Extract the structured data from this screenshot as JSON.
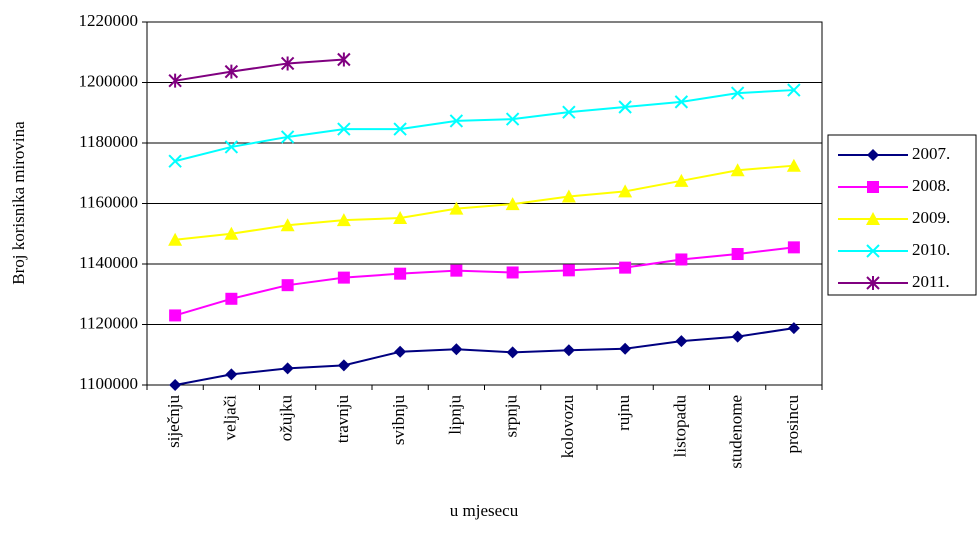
{
  "chart_data": {
    "type": "line",
    "y_label": "Broj korisnika mirovina",
    "x_label": "u mjesecu",
    "categories": [
      "siječnju",
      "veljači",
      "ožujku",
      "travnju",
      "svibnju",
      "lipnju",
      "srpnju",
      "kolovozu",
      "rujnu",
      "listopadu",
      "studenome",
      "prosincu"
    ],
    "ylim": [
      1100000,
      1220000
    ],
    "yticks": [
      1100000,
      1120000,
      1140000,
      1160000,
      1180000,
      1200000,
      1220000
    ],
    "grid": true,
    "legend": "right",
    "series": [
      {
        "name": "2007.",
        "color": "#000080",
        "marker": "diamond",
        "values": [
          1100000,
          1103500,
          1105500,
          1106500,
          1111000,
          1111800,
          1110800,
          1111500,
          1112000,
          1114500,
          1116000,
          1118800
        ]
      },
      {
        "name": "2008.",
        "color": "#ff00ff",
        "marker": "square",
        "values": [
          1123000,
          1128500,
          1133000,
          1135500,
          1136800,
          1137800,
          1137200,
          1137900,
          1138800,
          1141500,
          1143300,
          1145500
        ]
      },
      {
        "name": "2009.",
        "color": "#ffff00",
        "marker": "triangle",
        "values": [
          1148000,
          1150000,
          1152800,
          1154500,
          1155200,
          1158300,
          1159800,
          1162300,
          1164000,
          1167500,
          1171000,
          1172500
        ]
      },
      {
        "name": "2010.",
        "color": "#00ffff",
        "marker": "x",
        "values": [
          1174000,
          1178700,
          1182000,
          1184600,
          1184600,
          1187300,
          1187900,
          1190200,
          1191900,
          1193600,
          1196500,
          1197500
        ]
      },
      {
        "name": "2011.",
        "color": "#800080",
        "marker": "star",
        "values": [
          1200600,
          1203600,
          1206300,
          1207600,
          null,
          null,
          null,
          null,
          null,
          null,
          null,
          null
        ]
      }
    ]
  }
}
